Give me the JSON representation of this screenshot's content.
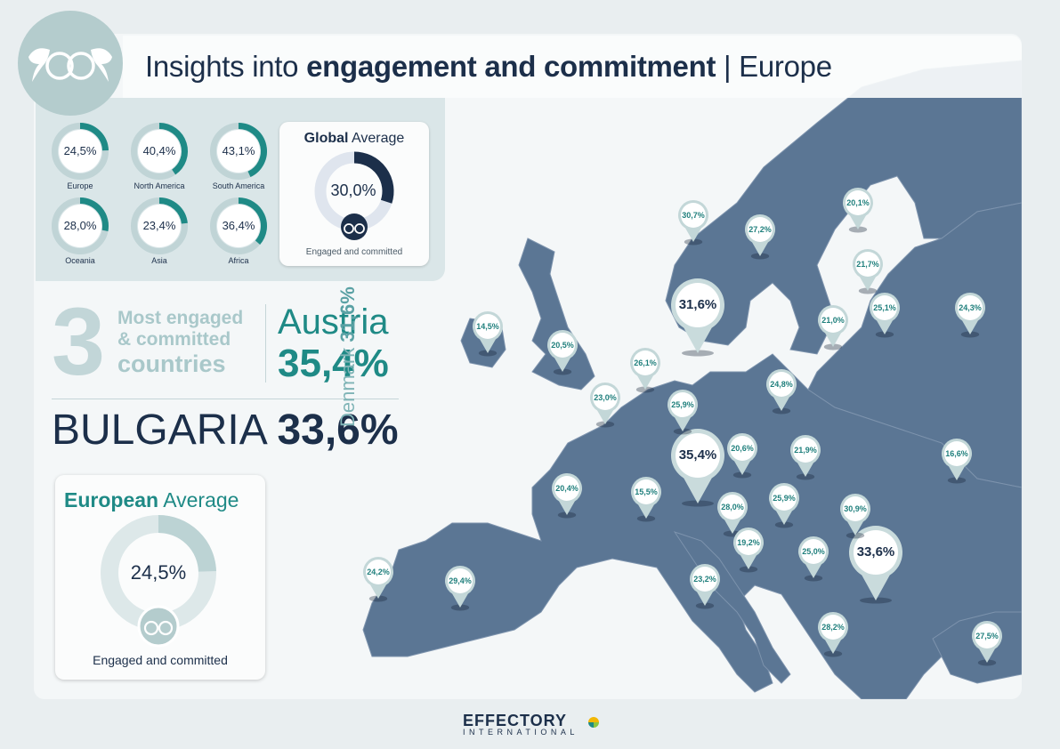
{
  "header": {
    "title_part1": "Insights into ",
    "title_part2": "engagement and commitment",
    "title_part3": " | Europe"
  },
  "global_average": {
    "title_bold": "Global",
    "title_rest": " Average",
    "value": "30,0%",
    "caption": "Engaged and committed"
  },
  "european_average": {
    "title_bold": "European",
    "title_rest": " Average",
    "value": "24,5%",
    "caption": "Engaged and committed"
  },
  "top_three": {
    "number": "3",
    "line1": "Most engaged",
    "line2": "& committed",
    "line3": "countries",
    "first_country": "Austria",
    "first_value": "35,4%",
    "second_country": "BULGARIA",
    "second_value": "33,6%",
    "third_country": "Denmark",
    "third_value": "31,6%"
  },
  "footer": {
    "brand": "EFFECTORY",
    "brand_sub": "INTERNATIONAL"
  },
  "colors": {
    "navy": "#1c2f4a",
    "teal": "#1f8a86",
    "light_teal": "#a9c8ca",
    "map": "#5b7694",
    "ring_track": "#d3e0e2"
  },
  "icons": [
    "logo-icon",
    "map-pin-icon",
    "effectory-logo-icon"
  ],
  "chart_data": [
    {
      "type": "pie",
      "name": "continent-averages",
      "unit": "%",
      "categories": [
        "Europe",
        "North America",
        "South America",
        "Oceania",
        "Asia",
        "Africa"
      ],
      "values": [
        24.5,
        40.4,
        43.1,
        28.0,
        23.4,
        36.4
      ],
      "labels": [
        "24,5%",
        "40,4%",
        "43,1%",
        "28,0%",
        "23,4%",
        "36,4%"
      ]
    },
    {
      "type": "pie",
      "name": "global-average",
      "values": [
        30.0
      ],
      "labels": [
        "30,0%"
      ]
    },
    {
      "type": "pie",
      "name": "european-average",
      "values": [
        24.5
      ],
      "labels": [
        "24,5%"
      ]
    },
    {
      "type": "table",
      "name": "country-map-values",
      "values": [
        31.6,
        35.4,
        33.6,
        30.7,
        27.2,
        20.1,
        21.7,
        25.1,
        24.3,
        21.0,
        14.5,
        20.5,
        26.1,
        23.0,
        24.8,
        25.9,
        20.6,
        21.9,
        16.6,
        20.4,
        15.5,
        28.0,
        25.9,
        30.9,
        19.2,
        25.0,
        24.2,
        29.4,
        23.2,
        28.2,
        27.5
      ],
      "labels": [
        "31,6%",
        "35,4%",
        "33,6%",
        "30,7%",
        "27,2%",
        "20,1%",
        "21,7%",
        "25,1%",
        "24,3%",
        "21,0%",
        "14,5%",
        "20,5%",
        "26,1%",
        "23,0%",
        "24,8%",
        "25,9%",
        "20,6%",
        "21,9%",
        "16,6%",
        "20,4%",
        "15,5%",
        "28,0%",
        "25,9%",
        "30,9%",
        "19,2%",
        "25,0%",
        "24,2%",
        "29,4%",
        "23,2%",
        "28,2%",
        "27,5%"
      ]
    }
  ]
}
